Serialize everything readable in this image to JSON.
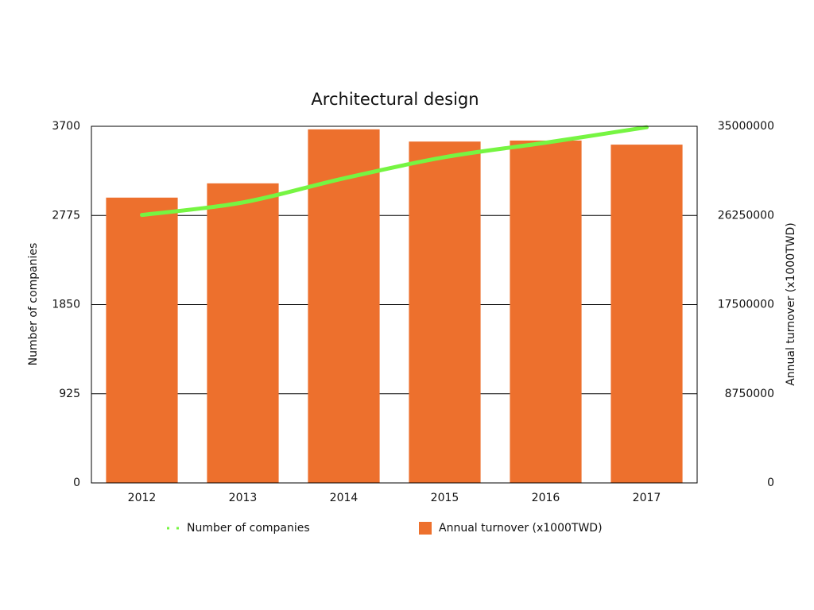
{
  "chart_data": {
    "type": "combo",
    "title": "Architectural design",
    "categories": [
      "2012",
      "2013",
      "2014",
      "2015",
      "2016",
      "2017"
    ],
    "y_label": "Number of companies",
    "y2_label": "Annual turnover (x1000TWD)",
    "ylim": [
      0,
      3700
    ],
    "yticks": [
      0,
      925,
      1850,
      2775,
      3700
    ],
    "y2lim": [
      0,
      35000000
    ],
    "y2ticks": [
      0,
      8750000,
      17500000,
      26250000,
      35000000
    ],
    "grid": true,
    "legend": "bottom",
    "series": [
      {
        "name": "Number of companies",
        "type": "line",
        "color": "#76f542",
        "axis": "y",
        "values": [
          2780,
          2910,
          3160,
          3380,
          3530,
          3690
        ]
      },
      {
        "name": "Annual turnover (x1000TWD)",
        "type": "bar",
        "color": "#ed702d",
        "axis": "y2",
        "values": [
          28000000,
          29400000,
          34700000,
          33500000,
          33600000,
          33200000
        ]
      }
    ]
  }
}
